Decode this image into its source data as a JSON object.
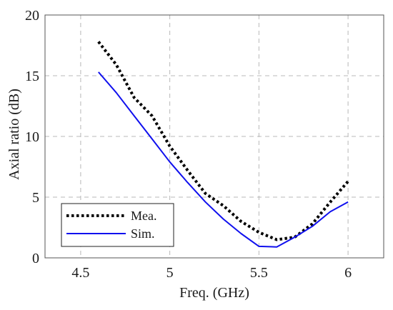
{
  "chart_data": {
    "type": "line",
    "xlabel": "Freq. (GHz)",
    "ylabel": "Axial ratio (dB)",
    "xlim": [
      4.3,
      6.2
    ],
    "ylim": [
      0,
      20
    ],
    "xticks": [
      4.5,
      5,
      5.5,
      6
    ],
    "xtick_labels": [
      "4.5",
      "5",
      "5.5",
      "6"
    ],
    "yticks": [
      0,
      5,
      10,
      15,
      20
    ],
    "ytick_labels": [
      "0",
      "5",
      "10",
      "15",
      "20"
    ],
    "grid": true,
    "legend_position": "bottom-left",
    "series": [
      {
        "name": "Mea.",
        "color": "#000000",
        "style": "dotted",
        "x": [
          4.6,
          4.7,
          4.8,
          4.9,
          5.0,
          5.1,
          5.2,
          5.3,
          5.4,
          5.5,
          5.6,
          5.7,
          5.8,
          5.9,
          6.0
        ],
        "y": [
          17.8,
          15.9,
          13.2,
          11.7,
          9.2,
          7.2,
          5.3,
          4.3,
          3.0,
          2.1,
          1.5,
          1.7,
          2.8,
          4.6,
          6.3
        ]
      },
      {
        "name": "Sim.",
        "color": "#1010ee",
        "style": "solid",
        "x": [
          4.6,
          4.7,
          4.8,
          4.9,
          5.0,
          5.1,
          5.2,
          5.3,
          5.4,
          5.5,
          5.6,
          5.7,
          5.8,
          5.9,
          6.0
        ],
        "y": [
          15.3,
          13.6,
          11.7,
          9.8,
          7.9,
          6.2,
          4.6,
          3.2,
          2.0,
          0.95,
          0.9,
          1.7,
          2.6,
          3.8,
          4.6
        ]
      }
    ]
  }
}
